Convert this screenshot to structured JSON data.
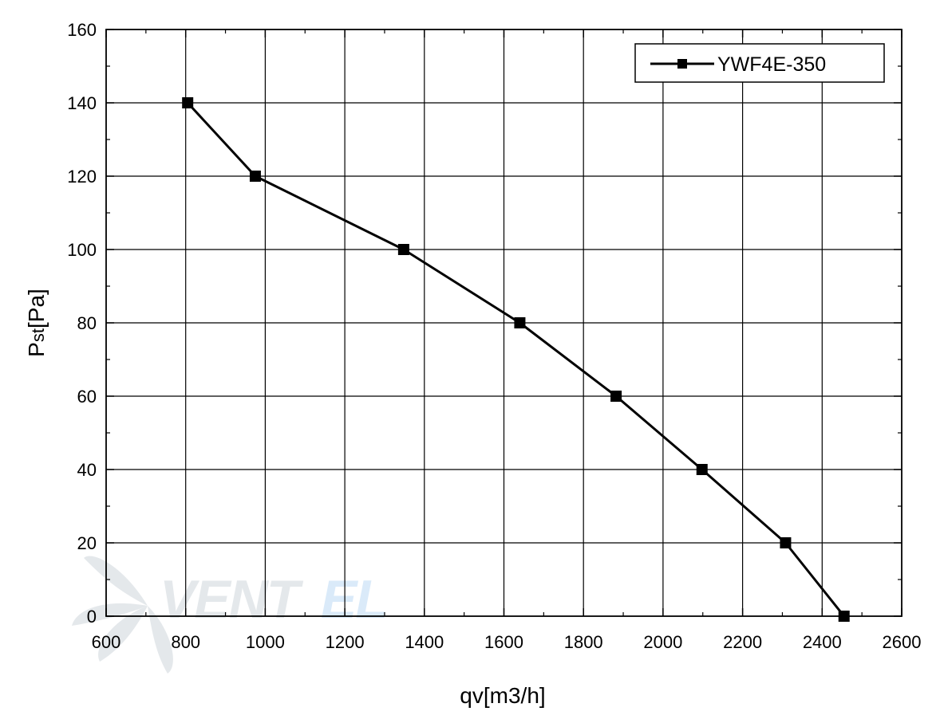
{
  "chart_data": {
    "type": "line",
    "title": "",
    "xlabel": "qv[m3/h]",
    "ylabel": {
      "main": "P",
      "sub": "st",
      "unit": "[Pa]"
    },
    "xlim": [
      600,
      2600
    ],
    "ylim": [
      0,
      160
    ],
    "x_ticks": [
      "600",
      "800",
      "1000",
      "1200",
      "1400",
      "1600",
      "1800",
      "2000",
      "2200",
      "2400",
      "2600"
    ],
    "y_ticks": [
      "0",
      "20",
      "40",
      "60",
      "80",
      "100",
      "120",
      "140",
      "160"
    ],
    "grid": true,
    "legend_position": "top-right",
    "series": [
      {
        "name": "YWF4E-350",
        "color": "#000000",
        "marker": "square",
        "x": [
          805,
          975,
          1348,
          1640,
          1882,
          2098,
          2308,
          2455
        ],
        "y": [
          140,
          120,
          100,
          80,
          60,
          40,
          20,
          0
        ]
      }
    ],
    "watermark": "Ventel"
  }
}
